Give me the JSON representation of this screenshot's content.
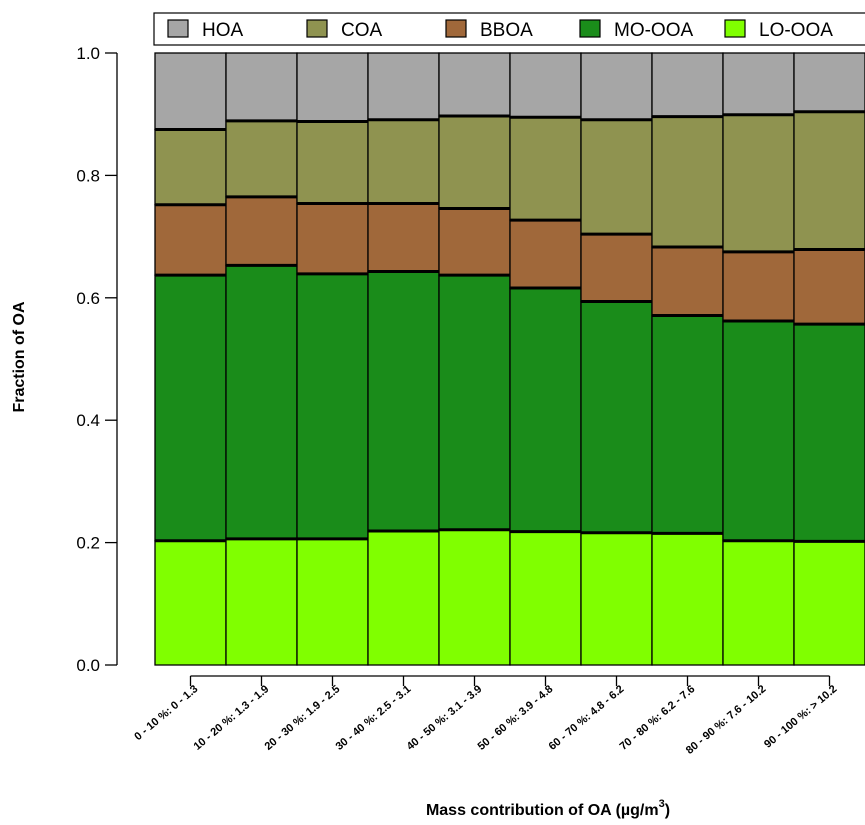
{
  "chart_data": {
    "type": "bar",
    "stacked": true,
    "categories": [
      "0 - 10 %: 0 - 1.3",
      "10 - 20 %: 1.3 - 1.9",
      "20 - 30 %: 1.9 - 2.5",
      "30 - 40 %: 2.5 - 3.1",
      "40 - 50 %: 3.1 - 3.9",
      "50 - 60 %: 3.9 - 4.8",
      "60 - 70 %: 4.8 - 6.2",
      "70 - 80 %: 6.2 - 7.6",
      "80 - 90 %: 7.6 - 10.2",
      "90 - 100 %: > 10.2"
    ],
    "series": [
      {
        "name": "LO-OOA",
        "color": "#80ff00",
        "values": [
          0.203,
          0.206,
          0.206,
          0.219,
          0.221,
          0.218,
          0.216,
          0.215,
          0.203,
          0.202
        ]
      },
      {
        "name": "MO-OOA",
        "color": "#1a8c1a",
        "values": [
          0.434,
          0.447,
          0.433,
          0.424,
          0.416,
          0.398,
          0.378,
          0.356,
          0.359,
          0.355
        ]
      },
      {
        "name": "BBOA",
        "color": "#a0683a",
        "values": [
          0.115,
          0.112,
          0.115,
          0.111,
          0.109,
          0.111,
          0.11,
          0.112,
          0.113,
          0.122
        ]
      },
      {
        "name": "COA",
        "color": "#8f9350",
        "values": [
          0.123,
          0.124,
          0.134,
          0.137,
          0.151,
          0.168,
          0.187,
          0.213,
          0.224,
          0.225
        ]
      },
      {
        "name": "HOA",
        "color": "#a6a6a6",
        "values": [
          0.125,
          0.111,
          0.112,
          0.109,
          0.103,
          0.105,
          0.109,
          0.104,
          0.101,
          0.096
        ]
      }
    ],
    "legend_order": [
      "HOA",
      "COA",
      "BBOA",
      "MO-OOA",
      "LO-OOA"
    ],
    "legend_placement": "top",
    "xlabel": "Mass contribution of OA  (µg/m³)",
    "xlabel_parts": {
      "main": "Mass contribution of OA  (µg/m",
      "superscript": "3",
      "close": ")"
    },
    "ylabel": "Fraction of OA",
    "ylim": [
      0,
      1
    ],
    "yticks": [
      "0.0",
      "0.2",
      "0.4",
      "0.6",
      "0.8",
      "1.0"
    ],
    "grid": false
  }
}
